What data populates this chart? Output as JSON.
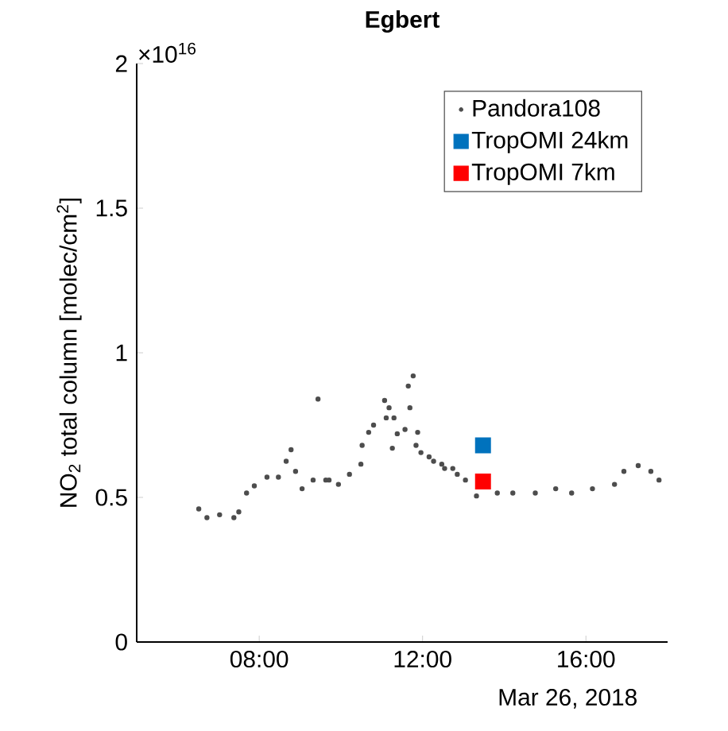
{
  "chart_data": {
    "type": "scatter",
    "title": "Egbert",
    "xlabel": "Mar 26, 2018",
    "ylabel": "NO$_{2}$ total column [molec/cm$^{2}$]",
    "annotations": [
      "×10$^{16}$"
    ],
    "xlim": [
      5,
      18
    ],
    "ylim": [
      0,
      2
    ],
    "xticks": [
      {
        "value": 8,
        "label": "08:00"
      },
      {
        "value": 12,
        "label": "12:00"
      },
      {
        "value": 16,
        "label": "16:00"
      }
    ],
    "yticks": [
      0,
      0.5,
      1,
      1.5,
      2
    ],
    "legend": "top right",
    "series": [
      {
        "name": "Pandora108",
        "color": "#4d4d4d",
        "marker": "circle",
        "x": [
          6.52,
          6.72,
          7.03,
          7.38,
          7.5,
          7.69,
          7.88,
          8.19,
          8.47,
          8.66,
          8.78,
          8.89,
          9.05,
          9.32,
          9.44,
          9.63,
          9.71,
          9.94,
          10.21,
          10.49,
          10.52,
          10.68,
          10.8,
          11.07,
          11.11,
          11.18,
          11.26,
          11.3,
          11.38,
          11.57,
          11.65,
          11.69,
          11.77,
          11.84,
          11.88,
          11.96,
          12.16,
          12.27,
          12.47,
          12.54,
          12.74,
          12.85,
          13.05,
          13.32,
          13.59,
          13.83,
          14.21,
          14.76,
          15.26,
          15.65,
          16.16,
          16.7,
          16.93,
          17.28,
          17.59,
          17.79
        ],
        "values": [
          0.46,
          0.43,
          0.44,
          0.43,
          0.45,
          0.515,
          0.54,
          0.57,
          0.57,
          0.625,
          0.665,
          0.59,
          0.53,
          0.56,
          0.84,
          0.56,
          0.56,
          0.545,
          0.58,
          0.615,
          0.68,
          0.725,
          0.75,
          0.835,
          0.775,
          0.81,
          0.67,
          0.775,
          0.72,
          0.735,
          0.885,
          0.81,
          0.92,
          0.68,
          0.725,
          0.655,
          0.64,
          0.625,
          0.615,
          0.6,
          0.6,
          0.58,
          0.56,
          0.505,
          null,
          0.515,
          0.515,
          0.515,
          0.53,
          0.515,
          0.53,
          0.545,
          0.59,
          0.61,
          0.59,
          0.56
        ]
      },
      {
        "name": "TropOMI 24km",
        "color": "#0072bd",
        "marker": "square",
        "x": [
          13.48
        ],
        "values": [
          0.68
        ]
      },
      {
        "name": "TropOMI 7km",
        "color": "#ff0000",
        "marker": "square",
        "x": [
          13.48
        ],
        "values": [
          0.555
        ]
      }
    ]
  }
}
